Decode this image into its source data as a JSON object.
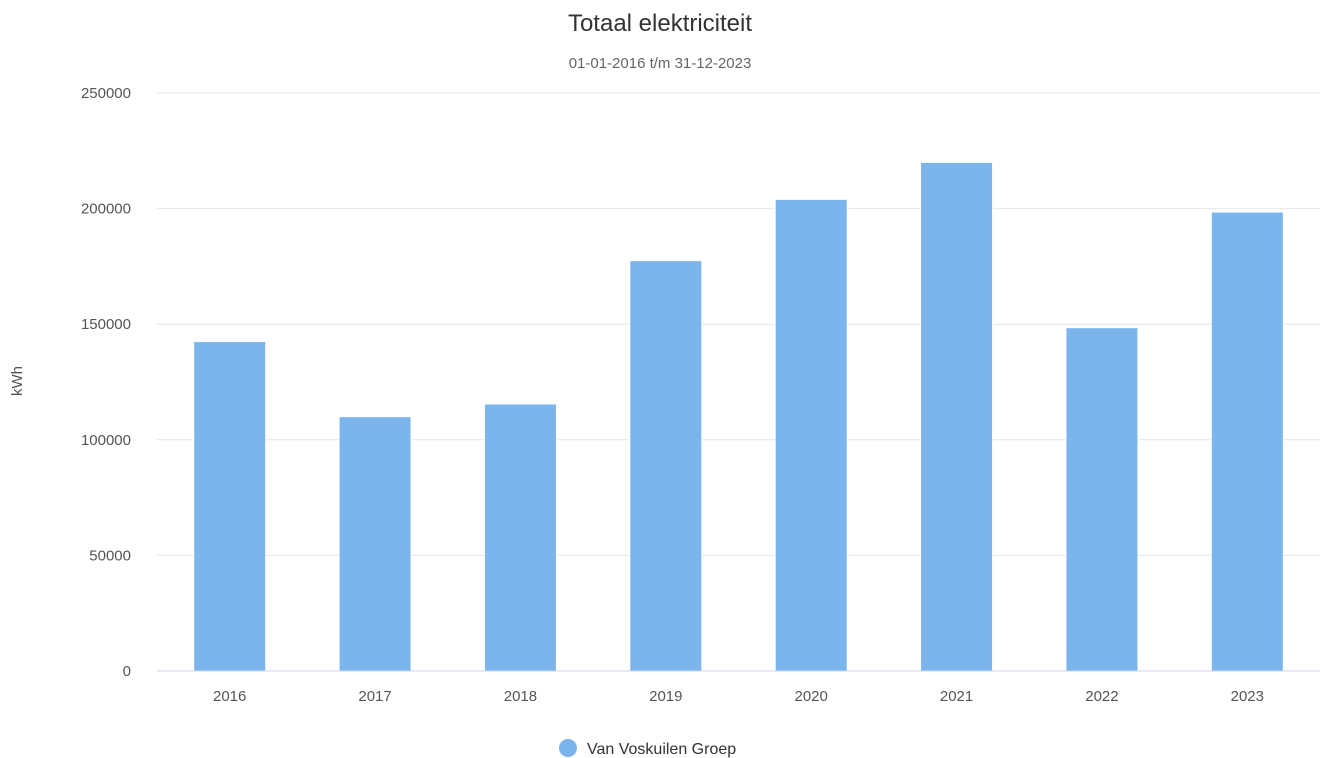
{
  "chart_data": {
    "type": "bar",
    "title": "Totaal elektriciteit",
    "subtitle": "01-01-2016 t/m 31-12-2023",
    "ylabel": "kWh",
    "xlabel": "",
    "ylim": [
      0,
      250000
    ],
    "yticks": [
      "0",
      "50000",
      "100000",
      "150000",
      "200000",
      "250000"
    ],
    "grid": true,
    "legend_position": "bottom-center",
    "categories": [
      "2016",
      "2017",
      "2018",
      "2019",
      "2020",
      "2021",
      "2022",
      "2023"
    ],
    "series": [
      {
        "name": "Van Voskuilen Groep",
        "color": "#7cb5ec",
        "values": [
          142500,
          110000,
          115500,
          177500,
          204000,
          220000,
          148500,
          198500
        ]
      }
    ]
  }
}
